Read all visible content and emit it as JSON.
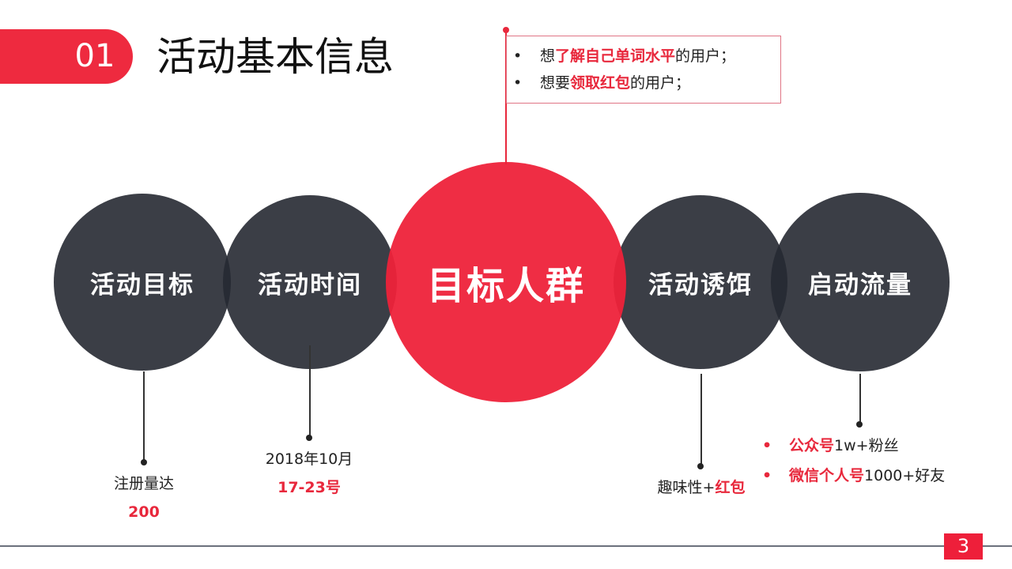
{
  "header": {
    "number": "01",
    "title": "活动基本信息"
  },
  "target_box": {
    "items": [
      {
        "prefix": "想",
        "highlight": "了解自己单词水平",
        "suffix": "的用户；"
      },
      {
        "prefix": "想要",
        "highlight": "领取红包",
        "suffix": "的用户；"
      }
    ]
  },
  "circles": {
    "goal": "活动目标",
    "time": "活动时间",
    "audience": "目标人群",
    "bait": "活动诱饵",
    "traffic": "启动流量"
  },
  "goal": {
    "label": "注册量达",
    "value": "200"
  },
  "time": {
    "label": "2018年10月",
    "value": "17-23号"
  },
  "bait": {
    "label": "趣味性+",
    "highlight": "红包"
  },
  "traffic": {
    "items": [
      {
        "highlight": "公众号",
        "suffix": "1w+粉丝"
      },
      {
        "highlight": "微信个人号",
        "suffix": "1000+好友"
      }
    ]
  },
  "page_number": "3",
  "colors": {
    "accent": "#ee2a3f",
    "dark": "#3a3d45"
  }
}
